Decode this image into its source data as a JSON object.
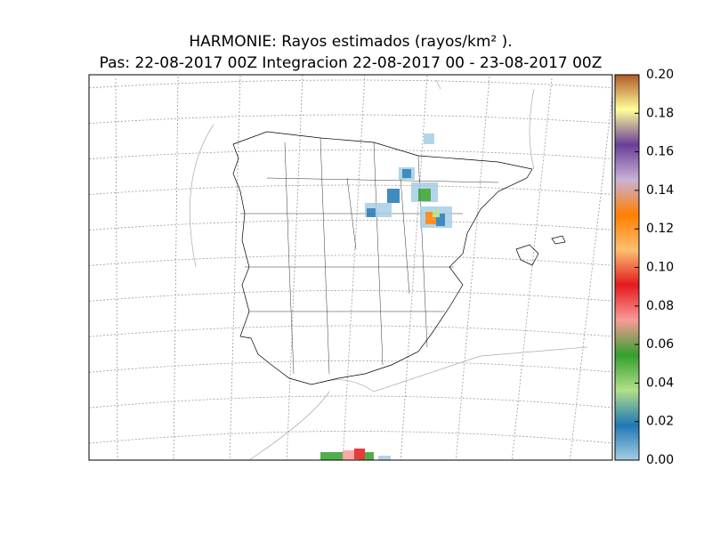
{
  "title": "HARMONIE: Rayos estimados  (rayos/km² ).",
  "subtitle": "Pas: 22-08-2017 00Z Integracion 22-08-2017 00 - 23-08-2017 00Z",
  "colorbar": {
    "range": [
      0,
      0.2
    ],
    "ticks": [
      {
        "value": 0,
        "label": "0.00"
      },
      {
        "value": 0.02,
        "label": "0.02"
      },
      {
        "value": 0.04,
        "label": "0.04"
      },
      {
        "value": 0.06,
        "label": "0.06"
      },
      {
        "value": 0.08,
        "label": "0.08"
      },
      {
        "value": 0.1,
        "label": "0.10"
      },
      {
        "value": 0.12,
        "label": "0.12"
      },
      {
        "value": 0.14,
        "label": "0.14"
      },
      {
        "value": 0.16,
        "label": "0.16"
      },
      {
        "value": 0.18,
        "label": "0.18"
      },
      {
        "value": 0.2,
        "label": "0.20"
      }
    ],
    "colors": [
      "#a6cee3",
      "#1f78b4",
      "#b2df8a",
      "#33a02c",
      "#fb9a99",
      "#e31a1c",
      "#fdbf6f",
      "#ff7f00",
      "#cab2d6",
      "#6a3d9a",
      "#ffff99",
      "#b15928"
    ]
  }
}
